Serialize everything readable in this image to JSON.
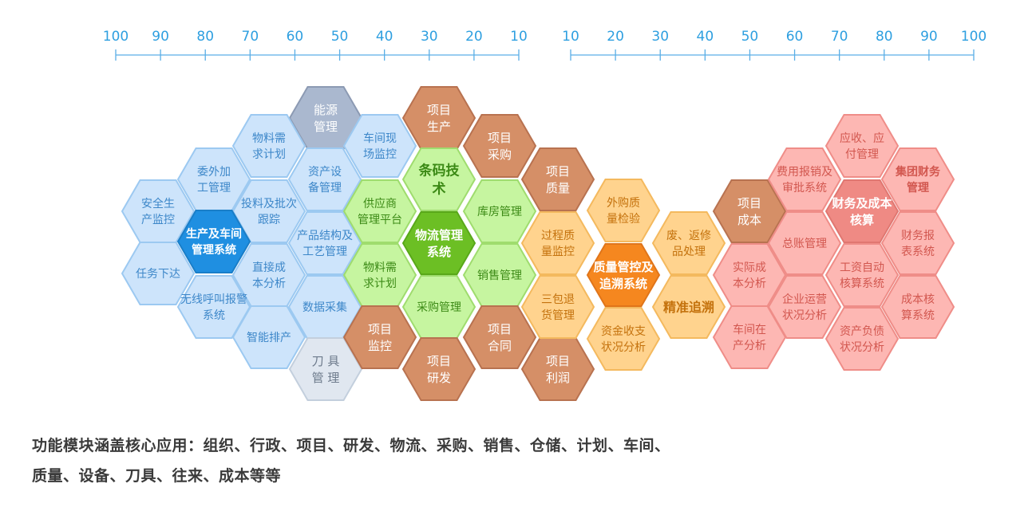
{
  "scale_left": {
    "ticks": [
      "100",
      "90",
      "80",
      "70",
      "60",
      "50",
      "40",
      "30",
      "20",
      "10"
    ]
  },
  "scale_right": {
    "ticks": [
      "10",
      "20",
      "30",
      "40",
      "50",
      "60",
      "70",
      "80",
      "90",
      "100"
    ]
  },
  "colors": {
    "blue_fill": "#cde4fb",
    "blue_stroke": "#9cc9f1",
    "blue_text": "#3d87c9",
    "blue_core": "#1f8fe1",
    "gray_fill": "#aab8cf",
    "gray_stroke": "#8c9ab3",
    "light_gray_fill": "#e0e7f0",
    "light_gray_stroke": "#c3cfdd",
    "green_fill": "#c6f5a0",
    "green_stroke": "#9fdc6e",
    "green_text": "#3c8a16",
    "green_core": "#6cbf24",
    "brown_fill": "#d58f67",
    "brown_stroke": "#b87250",
    "orange_fill": "#ffd38e",
    "orange_stroke": "#f4b95e",
    "orange_text": "#c4720d",
    "orange_core": "#f5871f",
    "red_fill": "#fdb7b3",
    "red_stroke": "#ef8d88",
    "red_text": "#d2574f",
    "red_core": "#ef8a84",
    "axis": "#5aaee6",
    "caption": "#3a3a3a"
  },
  "modules": [
    {
      "label": "能源管理",
      "lines": [
        "能源",
        "管理"
      ],
      "group": "gray"
    },
    {
      "label": "物料需求计划",
      "lines": [
        "物料需",
        "求计划"
      ],
      "group": "blue"
    },
    {
      "label": "车间现场监控",
      "lines": [
        "车间现",
        "场监控"
      ],
      "group": "blue"
    },
    {
      "label": "委外加工管理",
      "lines": [
        "委外加",
        "工管理"
      ],
      "group": "blue"
    },
    {
      "label": "资产设备管理",
      "lines": [
        "资产设",
        "备管理"
      ],
      "group": "blue"
    },
    {
      "label": "安全生产监控",
      "lines": [
        "安全生",
        "产监控"
      ],
      "group": "blue"
    },
    {
      "label": "投料及批次跟踪",
      "lines": [
        "投料及批次",
        "跟踪"
      ],
      "group": "blue"
    },
    {
      "label": "生产及车间管理系统",
      "lines": [
        "生产及车间",
        "管理系统"
      ],
      "group": "blue_core"
    },
    {
      "label": "产品结构及工艺管理",
      "lines": [
        "产品结构及",
        "工艺管理"
      ],
      "group": "blue"
    },
    {
      "label": "任务下达",
      "lines": [
        "任务下达"
      ],
      "group": "blue"
    },
    {
      "label": "直接成本分析",
      "lines": [
        "直接成",
        "本分析"
      ],
      "group": "blue"
    },
    {
      "label": "无线呼叫报警系统",
      "lines": [
        "无线呼叫报警",
        "系统"
      ],
      "group": "blue"
    },
    {
      "label": "数据采集",
      "lines": [
        "数据采集"
      ],
      "group": "blue"
    },
    {
      "label": "智能排产",
      "lines": [
        "智能排产"
      ],
      "group": "blue"
    },
    {
      "label": "刀具管理",
      "lines": [
        "刀  具",
        "管  理"
      ],
      "group": "light_gray"
    },
    {
      "label": "项目生产",
      "lines": [
        "项目",
        "生产"
      ],
      "group": "brown"
    },
    {
      "label": "条码技术",
      "lines": [
        "条码技",
        "术"
      ],
      "group": "green_bold"
    },
    {
      "label": "项目采购",
      "lines": [
        "项目",
        "采购"
      ],
      "group": "brown"
    },
    {
      "label": "供应商管理平台",
      "lines": [
        "供应商",
        "管理平台"
      ],
      "group": "green"
    },
    {
      "label": "库房管理",
      "lines": [
        "库房管理"
      ],
      "group": "green"
    },
    {
      "label": "物流管理系统",
      "lines": [
        "物流管理",
        "系统"
      ],
      "group": "green_core"
    },
    {
      "label": "物料需求计划",
      "lines": [
        "物料需",
        "求计划"
      ],
      "group": "green"
    },
    {
      "label": "销售管理",
      "lines": [
        "销售管理"
      ],
      "group": "green"
    },
    {
      "label": "采购管理",
      "lines": [
        "采购管理"
      ],
      "group": "green"
    },
    {
      "label": "项目监控",
      "lines": [
        "项目",
        "监控"
      ],
      "group": "brown"
    },
    {
      "label": "项目研发",
      "lines": [
        "项目",
        "研发"
      ],
      "group": "brown"
    },
    {
      "label": "项目合同",
      "lines": [
        "项目",
        "合同"
      ],
      "group": "brown"
    },
    {
      "label": "项目质量",
      "lines": [
        "项目",
        "质量"
      ],
      "group": "brown"
    },
    {
      "label": "项目利润",
      "lines": [
        "项目",
        "利润"
      ],
      "group": "brown"
    },
    {
      "label": "外购质量检验",
      "lines": [
        "外购质",
        "量检验"
      ],
      "group": "orange"
    },
    {
      "label": "过程质量监控",
      "lines": [
        "过程质",
        "量监控"
      ],
      "group": "orange"
    },
    {
      "label": "废、返修品处理",
      "lines": [
        "废、返修",
        "品处理"
      ],
      "group": "orange"
    },
    {
      "label": "质量管控及追溯系统",
      "lines": [
        "质量管控及",
        "追溯系统"
      ],
      "group": "orange_core"
    },
    {
      "label": "三包退货管理",
      "lines": [
        "三包退",
        "货管理"
      ],
      "group": "orange"
    },
    {
      "label": "精准追溯",
      "lines": [
        "精准追溯"
      ],
      "group": "orange_bold"
    },
    {
      "label": "资金收支状况分析",
      "lines": [
        "资金收支",
        "状况分析"
      ],
      "group": "orange"
    },
    {
      "label": "项目成本",
      "lines": [
        "项目",
        "成本"
      ],
      "group": "brown"
    },
    {
      "label": "实际成本分析",
      "lines": [
        "实际成",
        "本分析"
      ],
      "group": "red"
    },
    {
      "label": "车间在产分析",
      "lines": [
        "车间在",
        "产分析"
      ],
      "group": "red"
    },
    {
      "label": "费用报销及审批系统",
      "lines": [
        "费用报销及",
        "审批系统"
      ],
      "group": "red"
    },
    {
      "label": "应收、应付管理",
      "lines": [
        "应收、应",
        "付管理"
      ],
      "group": "red"
    },
    {
      "label": "总账管理",
      "lines": [
        "总账管理"
      ],
      "group": "red"
    },
    {
      "label": "财务及成本核算",
      "lines": [
        "财务及成本",
        "核算"
      ],
      "group": "red_core"
    },
    {
      "label": "集团财务管理",
      "lines": [
        "集团财务",
        "管理"
      ],
      "group": "red_bold"
    },
    {
      "label": "企业运营状况分析",
      "lines": [
        "企业运营",
        "状况分析"
      ],
      "group": "red"
    },
    {
      "label": "工资自动核算系统",
      "lines": [
        "工资自动",
        "核算系统"
      ],
      "group": "red"
    },
    {
      "label": "财务报表系统",
      "lines": [
        "财务报",
        "表系统"
      ],
      "group": "red"
    },
    {
      "label": "资产负债状况分析",
      "lines": [
        "资产负债",
        "状况分析"
      ],
      "group": "red"
    },
    {
      "label": "成本核算系统",
      "lines": [
        "成本核",
        "算系统"
      ],
      "group": "red"
    }
  ],
  "caption": {
    "line1": "功能模块涵盖核心应用：组织、行政、项目、研发、物流、采购、销售、仓储、计划、车间、",
    "line2": "质量、设备、刀具、往来、成本等等"
  }
}
